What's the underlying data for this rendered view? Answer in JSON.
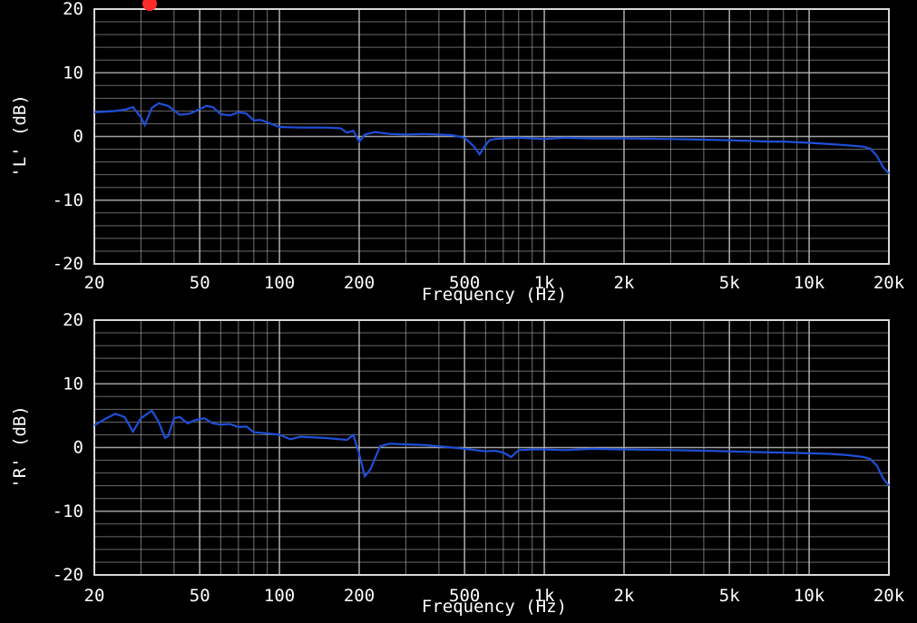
{
  "chart_data": [
    {
      "type": "line",
      "title": "",
      "xlabel": "Frequency (Hz)",
      "ylabel": "'L' (dB)",
      "xscale": "log",
      "xlim": [
        20,
        20000
      ],
      "ylim": [
        -20,
        20
      ],
      "grid": true,
      "xticks": [
        {
          "value": 20,
          "label": "20"
        },
        {
          "value": 50,
          "label": "50"
        },
        {
          "value": 100,
          "label": "100"
        },
        {
          "value": 200,
          "label": "200"
        },
        {
          "value": 500,
          "label": "500"
        },
        {
          "value": 1000,
          "label": "1k"
        },
        {
          "value": 2000,
          "label": "2k"
        },
        {
          "value": 5000,
          "label": "5k"
        },
        {
          "value": 10000,
          "label": "10k"
        },
        {
          "value": 20000,
          "label": "20k"
        }
      ],
      "yticks": [
        20,
        10,
        0,
        -10,
        -20
      ],
      "series": [
        {
          "color": "#1f4fd8",
          "x": [
            20,
            22,
            24,
            26,
            28,
            30,
            31,
            33,
            35,
            38,
            42,
            46,
            50,
            53,
            56,
            60,
            65,
            70,
            75,
            80,
            85,
            90,
            100,
            120,
            150,
            170,
            180,
            190,
            200,
            210,
            230,
            260,
            300,
            350,
            400,
            450,
            500,
            540,
            570,
            590,
            620,
            650,
            700,
            800,
            900,
            1000,
            1200,
            1500,
            2000,
            3000,
            4000,
            5000,
            6000,
            7000,
            8000,
            10000,
            12000,
            14000,
            15000,
            16000,
            17000,
            18000,
            19000,
            20000
          ],
          "y": [
            3.8,
            3.9,
            4.0,
            4.2,
            4.6,
            3.0,
            1.8,
            4.5,
            5.2,
            4.8,
            3.4,
            3.6,
            4.3,
            4.8,
            4.6,
            3.5,
            3.3,
            3.8,
            3.6,
            2.5,
            2.6,
            2.2,
            1.5,
            1.4,
            1.4,
            1.3,
            0.6,
            0.9,
            -0.8,
            0.3,
            0.7,
            0.4,
            0.3,
            0.4,
            0.3,
            0.2,
            -0.2,
            -1.5,
            -2.8,
            -1.8,
            -0.6,
            -0.4,
            -0.3,
            -0.2,
            -0.3,
            -0.4,
            -0.2,
            -0.3,
            -0.3,
            -0.4,
            -0.5,
            -0.6,
            -0.7,
            -0.8,
            -0.8,
            -1.0,
            -1.2,
            -1.4,
            -1.5,
            -1.6,
            -1.9,
            -3.0,
            -4.8,
            -5.8
          ]
        }
      ]
    },
    {
      "type": "line",
      "title": "",
      "xlabel": "Frequency (Hz)",
      "ylabel": "'R' (dB)",
      "xscale": "log",
      "xlim": [
        20,
        20000
      ],
      "ylim": [
        -20,
        20
      ],
      "grid": true,
      "xticks": [
        {
          "value": 20,
          "label": "20"
        },
        {
          "value": 50,
          "label": "50"
        },
        {
          "value": 100,
          "label": "100"
        },
        {
          "value": 200,
          "label": "200"
        },
        {
          "value": 500,
          "label": "500"
        },
        {
          "value": 1000,
          "label": "1k"
        },
        {
          "value": 2000,
          "label": "2k"
        },
        {
          "value": 5000,
          "label": "5k"
        },
        {
          "value": 10000,
          "label": "10k"
        },
        {
          "value": 20000,
          "label": "20k"
        }
      ],
      "yticks": [
        20,
        10,
        0,
        -10,
        -20
      ],
      "series": [
        {
          "color": "#1f4fd8",
          "x": [
            20,
            22,
            24,
            26,
            28,
            30,
            33,
            35,
            37,
            38,
            40,
            42,
            45,
            48,
            52,
            56,
            60,
            65,
            70,
            75,
            80,
            90,
            100,
            110,
            120,
            150,
            180,
            190,
            200,
            210,
            220,
            240,
            260,
            300,
            350,
            400,
            450,
            500,
            550,
            600,
            650,
            700,
            750,
            800,
            900,
            1000,
            1200,
            1500,
            2000,
            3000,
            4000,
            5000,
            6000,
            8000,
            10000,
            12000,
            14000,
            16000,
            17000,
            18000,
            19000,
            20000
          ],
          "y": [
            3.5,
            4.5,
            5.3,
            4.8,
            2.5,
            4.6,
            5.8,
            4.0,
            1.5,
            1.8,
            4.6,
            4.8,
            3.8,
            4.3,
            4.6,
            3.8,
            3.6,
            3.7,
            3.2,
            3.3,
            2.4,
            2.2,
            2.0,
            1.3,
            1.7,
            1.5,
            1.2,
            2.0,
            -1.0,
            -4.5,
            -3.5,
            0.2,
            0.6,
            0.5,
            0.4,
            0.2,
            0.0,
            -0.2,
            -0.4,
            -0.6,
            -0.5,
            -0.8,
            -1.5,
            -0.4,
            -0.3,
            -0.3,
            -0.4,
            -0.2,
            -0.3,
            -0.4,
            -0.5,
            -0.6,
            -0.7,
            -0.8,
            -0.9,
            -1.0,
            -1.2,
            -1.5,
            -1.8,
            -2.8,
            -4.8,
            -6.0
          ]
        }
      ]
    }
  ],
  "colors": {
    "background": "#000000",
    "grid": "#bdbdbd",
    "series": "#1f4fd8",
    "marker": "#ff2a2a"
  },
  "marker": {
    "name": "red-dot-marker"
  }
}
